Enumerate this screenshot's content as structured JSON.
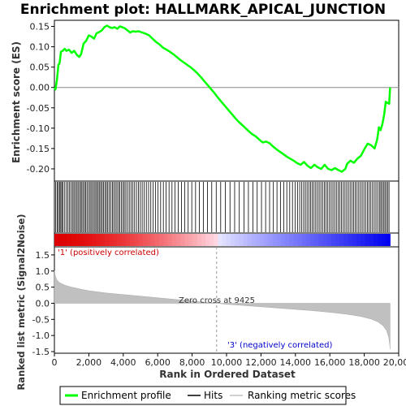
{
  "chart_data": {
    "type": "line",
    "title": "Enrichment plot: HALLMARK_APICAL_JUNCTION",
    "x_axis": {
      "label": "Rank in Ordered Dataset",
      "range": [
        0,
        20000
      ],
      "tick_labels": [
        "0",
        "2,000",
        "4,000",
        "6,000",
        "8,000",
        "10,000",
        "12,000",
        "14,000",
        "16,000",
        "18,000",
        "20,000"
      ],
      "tick_values": [
        0,
        2000,
        4000,
        6000,
        8000,
        10000,
        12000,
        14000,
        16000,
        18000,
        20000
      ]
    },
    "es_panel": {
      "ylabel": "Enrichment score (ES)",
      "ylim": [
        -0.23,
        0.165
      ],
      "tick_labels": [
        "0.15",
        "0.10",
        "0.05",
        "0.00",
        "-0.05",
        "-0.10",
        "-0.15",
        "-0.20"
      ],
      "tick_values": [
        0.15,
        0.1,
        0.05,
        0.0,
        -0.05,
        -0.1,
        -0.15,
        -0.2
      ],
      "series_color": "#00ff00",
      "points": [
        [
          0,
          0.0
        ],
        [
          60,
          -0.005
        ],
        [
          150,
          0.02
        ],
        [
          230,
          0.055
        ],
        [
          300,
          0.06
        ],
        [
          380,
          0.088
        ],
        [
          480,
          0.09
        ],
        [
          600,
          0.095
        ],
        [
          700,
          0.09
        ],
        [
          850,
          0.093
        ],
        [
          1000,
          0.085
        ],
        [
          1150,
          0.09
        ],
        [
          1300,
          0.08
        ],
        [
          1450,
          0.075
        ],
        [
          1550,
          0.082
        ],
        [
          1700,
          0.108
        ],
        [
          1850,
          0.115
        ],
        [
          2000,
          0.128
        ],
        [
          2150,
          0.125
        ],
        [
          2300,
          0.12
        ],
        [
          2450,
          0.133
        ],
        [
          2600,
          0.136
        ],
        [
          2750,
          0.14
        ],
        [
          2900,
          0.148
        ],
        [
          3050,
          0.152
        ],
        [
          3200,
          0.148
        ],
        [
          3350,
          0.146
        ],
        [
          3500,
          0.148
        ],
        [
          3650,
          0.144
        ],
        [
          3800,
          0.15
        ],
        [
          3950,
          0.148
        ],
        [
          4100,
          0.145
        ],
        [
          4250,
          0.14
        ],
        [
          4400,
          0.135
        ],
        [
          4550,
          0.138
        ],
        [
          4700,
          0.137
        ],
        [
          4900,
          0.138
        ],
        [
          5100,
          0.135
        ],
        [
          5300,
          0.132
        ],
        [
          5500,
          0.128
        ],
        [
          5700,
          0.12
        ],
        [
          5900,
          0.112
        ],
        [
          6100,
          0.106
        ],
        [
          6300,
          0.098
        ],
        [
          6500,
          0.093
        ],
        [
          6700,
          0.088
        ],
        [
          6900,
          0.082
        ],
        [
          7100,
          0.075
        ],
        [
          7300,
          0.068
        ],
        [
          7500,
          0.062
        ],
        [
          7700,
          0.056
        ],
        [
          7900,
          0.05
        ],
        [
          8100,
          0.043
        ],
        [
          8300,
          0.035
        ],
        [
          8500,
          0.026
        ],
        [
          8700,
          0.016
        ],
        [
          8900,
          0.006
        ],
        [
          9100,
          -0.004
        ],
        [
          9300,
          -0.014
        ],
        [
          9500,
          -0.025
        ],
        [
          9700,
          -0.035
        ],
        [
          9900,
          -0.045
        ],
        [
          10100,
          -0.055
        ],
        [
          10300,
          -0.065
        ],
        [
          10500,
          -0.075
        ],
        [
          10700,
          -0.084
        ],
        [
          10900,
          -0.092
        ],
        [
          11100,
          -0.1
        ],
        [
          11300,
          -0.108
        ],
        [
          11500,
          -0.115
        ],
        [
          11700,
          -0.12
        ],
        [
          11900,
          -0.128
        ],
        [
          12100,
          -0.135
        ],
        [
          12300,
          -0.133
        ],
        [
          12500,
          -0.137
        ],
        [
          12700,
          -0.145
        ],
        [
          12900,
          -0.152
        ],
        [
          13100,
          -0.158
        ],
        [
          13300,
          -0.164
        ],
        [
          13500,
          -0.17
        ],
        [
          13700,
          -0.175
        ],
        [
          13900,
          -0.18
        ],
        [
          14100,
          -0.186
        ],
        [
          14300,
          -0.19
        ],
        [
          14500,
          -0.183
        ],
        [
          14700,
          -0.192
        ],
        [
          14900,
          -0.198
        ],
        [
          15100,
          -0.19
        ],
        [
          15300,
          -0.196
        ],
        [
          15500,
          -0.2
        ],
        [
          15700,
          -0.19
        ],
        [
          15900,
          -0.2
        ],
        [
          16100,
          -0.203
        ],
        [
          16300,
          -0.198
        ],
        [
          16500,
          -0.203
        ],
        [
          16700,
          -0.207
        ],
        [
          16900,
          -0.2
        ],
        [
          17000,
          -0.188
        ],
        [
          17200,
          -0.18
        ],
        [
          17400,
          -0.185
        ],
        [
          17600,
          -0.175
        ],
        [
          17800,
          -0.168
        ],
        [
          18000,
          -0.152
        ],
        [
          18200,
          -0.138
        ],
        [
          18400,
          -0.142
        ],
        [
          18600,
          -0.15
        ],
        [
          18750,
          -0.128
        ],
        [
          18850,
          -0.098
        ],
        [
          18950,
          -0.105
        ],
        [
          19050,
          -0.09
        ],
        [
          19150,
          -0.068
        ],
        [
          19250,
          -0.035
        ],
        [
          19350,
          -0.038
        ],
        [
          19450,
          -0.04
        ],
        [
          19500,
          0.0
        ]
      ]
    },
    "hits": {
      "rank_positions": [
        80,
        160,
        230,
        300,
        370,
        430,
        500,
        600,
        700,
        790,
        880,
        960,
        1050,
        1130,
        1210,
        1290,
        1370,
        1450,
        1530,
        1600,
        1680,
        1760,
        1830,
        1910,
        2000,
        2080,
        2160,
        2240,
        2320,
        2400,
        2470,
        2550,
        2630,
        2700,
        2780,
        2860,
        2940,
        3020,
        3100,
        3190,
        3280,
        3370,
        3450,
        3540,
        3630,
        3720,
        3800,
        3890,
        3980,
        4060,
        4150,
        4250,
        4350,
        4450,
        4560,
        4660,
        4770,
        4880,
        4990,
        5100,
        5220,
        5340,
        5470,
        5600,
        5740,
        5880,
        6020,
        6170,
        6330,
        6490,
        6660,
        6830,
        7010,
        7190,
        7380,
        7570,
        7770,
        7980,
        8200,
        8420,
        8650,
        8890,
        9140,
        9400,
        9660,
        9930,
        10200,
        10470,
        10740,
        11010,
        11270,
        11530,
        11780,
        12030,
        12270,
        12500,
        12720,
        12930,
        13130,
        13320,
        13500,
        13670,
        13830,
        13980,
        14120,
        14250,
        14370,
        14480,
        14580,
        14680,
        14780,
        14880,
        14980,
        15080,
        15180,
        15280,
        15380,
        15480,
        15580,
        15680,
        15780,
        15880,
        15980,
        16080,
        16180,
        16280,
        16380,
        16480,
        16580,
        16680,
        16780,
        16880,
        16980,
        17080,
        17180,
        17280,
        17380,
        17480,
        17580,
        17680,
        17780,
        17880,
        17980,
        18080,
        18180,
        18280,
        18380,
        18480,
        18580,
        18680,
        18780,
        18880,
        18960,
        19040,
        19120,
        19200,
        19280,
        19360,
        19440
      ]
    },
    "metric_panel": {
      "ylabel": "Ranked list metric (Signal2Noise)",
      "ylim": [
        -1.55,
        1.75
      ],
      "tick_labels": [
        "1.5",
        "1.0",
        "0.5",
        "0.0",
        "-0.5",
        "-1.0",
        "-1.5"
      ],
      "tick_values": [
        1.5,
        1.0,
        0.5,
        0.0,
        -0.5,
        -1.0,
        -1.5
      ],
      "fill_color": "#c0c0c0",
      "curve": [
        [
          0,
          1.02
        ],
        [
          50,
          0.85
        ],
        [
          150,
          0.72
        ],
        [
          300,
          0.64
        ],
        [
          600,
          0.56
        ],
        [
          1000,
          0.5
        ],
        [
          1500,
          0.44
        ],
        [
          2000,
          0.39
        ],
        [
          3000,
          0.32
        ],
        [
          4000,
          0.27
        ],
        [
          5000,
          0.22
        ],
        [
          6000,
          0.17
        ],
        [
          7000,
          0.12
        ],
        [
          8000,
          0.07
        ],
        [
          9000,
          0.02
        ],
        [
          9425,
          0.0
        ],
        [
          10000,
          -0.03
        ],
        [
          11000,
          -0.07
        ],
        [
          12000,
          -0.11
        ],
        [
          13000,
          -0.15
        ],
        [
          14000,
          -0.19
        ],
        [
          15000,
          -0.23
        ],
        [
          16000,
          -0.28
        ],
        [
          17000,
          -0.34
        ],
        [
          17800,
          -0.41
        ],
        [
          18400,
          -0.49
        ],
        [
          18800,
          -0.58
        ],
        [
          19100,
          -0.7
        ],
        [
          19300,
          -0.85
        ],
        [
          19420,
          -1.05
        ],
        [
          19480,
          -1.3
        ],
        [
          19500,
          -1.42
        ]
      ],
      "zero_cross": 9425
    },
    "annotations": {
      "positive": "'1' (positively correlated)",
      "negative": "'3' (negatively correlated)",
      "zero_cross": "Zero cross at 9425"
    },
    "legend": {
      "placement": "bottom",
      "items": [
        {
          "label": "Enrichment profile",
          "color": "#00ff00",
          "kind": "line-thick"
        },
        {
          "label": "Hits",
          "color": "#000000",
          "kind": "line"
        },
        {
          "label": "Ranking metric scores",
          "color": "#c0c0c0",
          "kind": "line"
        }
      ]
    },
    "n_total": 19500
  }
}
